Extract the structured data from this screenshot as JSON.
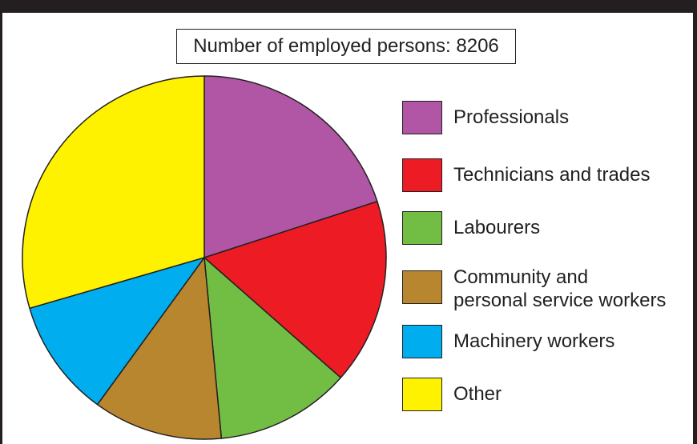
{
  "chart_data": {
    "type": "pie",
    "title": "Number of employed persons: 8206",
    "slices": [
      {
        "label": "Professionals",
        "value": 20.0,
        "color": "#b056a4"
      },
      {
        "label": "Technicians and trades",
        "value": 16.5,
        "color": "#ed1c24"
      },
      {
        "label": "Labourers",
        "value": 12.0,
        "color": "#72be44"
      },
      {
        "label": "Community and personal service workers",
        "label_lines": [
          "Community and",
          "personal service workers"
        ],
        "value": 11.5,
        "color": "#b8862f"
      },
      {
        "label": "Machinery workers",
        "value": 10.5,
        "color": "#00aeef"
      },
      {
        "label": "Other",
        "value": 29.5,
        "color": "#fff200"
      }
    ],
    "start_angle": "top",
    "direction": "clockwise",
    "legend_position": "right"
  }
}
